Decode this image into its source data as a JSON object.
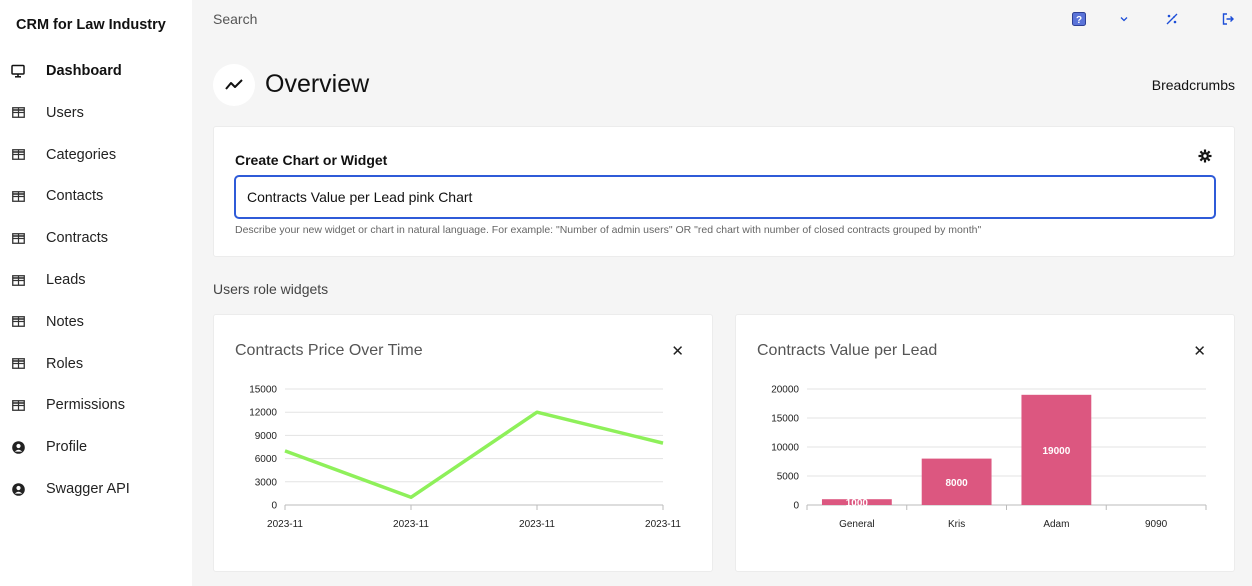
{
  "sidebar": {
    "brand": "CRM for Law Industry",
    "items": [
      {
        "label": "Dashboard",
        "icon": "monitor-icon"
      },
      {
        "label": "Users",
        "icon": "table-icon"
      },
      {
        "label": "Categories",
        "icon": "table-icon"
      },
      {
        "label": "Contacts",
        "icon": "table-icon"
      },
      {
        "label": "Contracts",
        "icon": "table-icon"
      },
      {
        "label": "Leads",
        "icon": "table-icon"
      },
      {
        "label": "Notes",
        "icon": "table-icon"
      },
      {
        "label": "Roles",
        "icon": "table-icon"
      },
      {
        "label": "Permissions",
        "icon": "table-icon"
      },
      {
        "label": "Profile",
        "icon": "user-circle-icon"
      },
      {
        "label": "Swagger API",
        "icon": "user-circle-icon"
      }
    ]
  },
  "topbar": {
    "search_label": "Search",
    "icons": [
      "help-icon",
      "chevron-down-icon",
      "theme-toggle-icon",
      "logout-icon"
    ]
  },
  "page": {
    "title": "Overview",
    "breadcrumbs": "Breadcrumbs"
  },
  "create_widget": {
    "title": "Create Chart or Widget",
    "input_value": "Contracts Value per Lead pink Chart",
    "help": "Describe your new widget or chart in natural language. For example: \"Number of admin users\" OR \"red chart with number of closed contracts grouped by month\""
  },
  "section_label": "Users role widgets",
  "colors": {
    "line": "#8ef05a",
    "bar": "#dc5780",
    "input_border": "#2f5bd8"
  },
  "chart_data": [
    {
      "type": "line",
      "title": "Contracts Price Over Time",
      "categories": [
        "2023-11",
        "2023-11",
        "2023-11",
        "2023-11"
      ],
      "values": [
        7000,
        1000,
        12000,
        8000
      ],
      "yticks": [
        0,
        3000,
        6000,
        9000,
        12000,
        15000
      ],
      "ylim": [
        0,
        15000
      ],
      "grid": true
    },
    {
      "type": "bar",
      "title": "Contracts Value per Lead",
      "categories": [
        "General",
        "Kris",
        "Adam",
        "9090"
      ],
      "values": [
        1000,
        8000,
        19000,
        0
      ],
      "data_labels": [
        "1000",
        "8000",
        "19000",
        ""
      ],
      "yticks": [
        0,
        5000,
        10000,
        15000,
        20000
      ],
      "ylim": [
        0,
        20000
      ],
      "grid": true
    }
  ]
}
